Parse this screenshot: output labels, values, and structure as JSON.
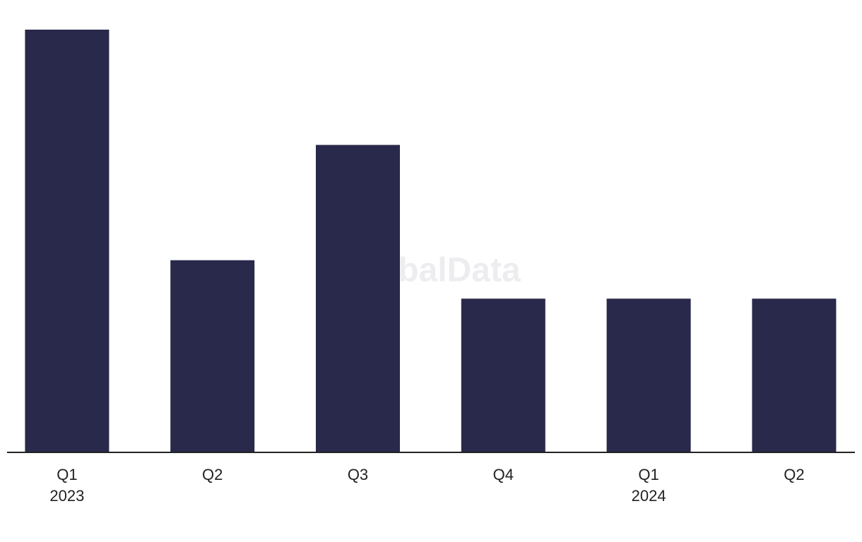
{
  "chart_data": {
    "type": "bar",
    "categories": [
      "Q1",
      "Q2",
      "Q3",
      "Q4",
      "Q1",
      "Q2"
    ],
    "year_labels": [
      "2023",
      null,
      null,
      null,
      "2024",
      null
    ],
    "values": [
      11,
      5,
      8,
      4,
      4,
      4
    ],
    "color": "#29294b",
    "ylim": [
      0,
      11
    ],
    "watermark": "GlobalData"
  }
}
